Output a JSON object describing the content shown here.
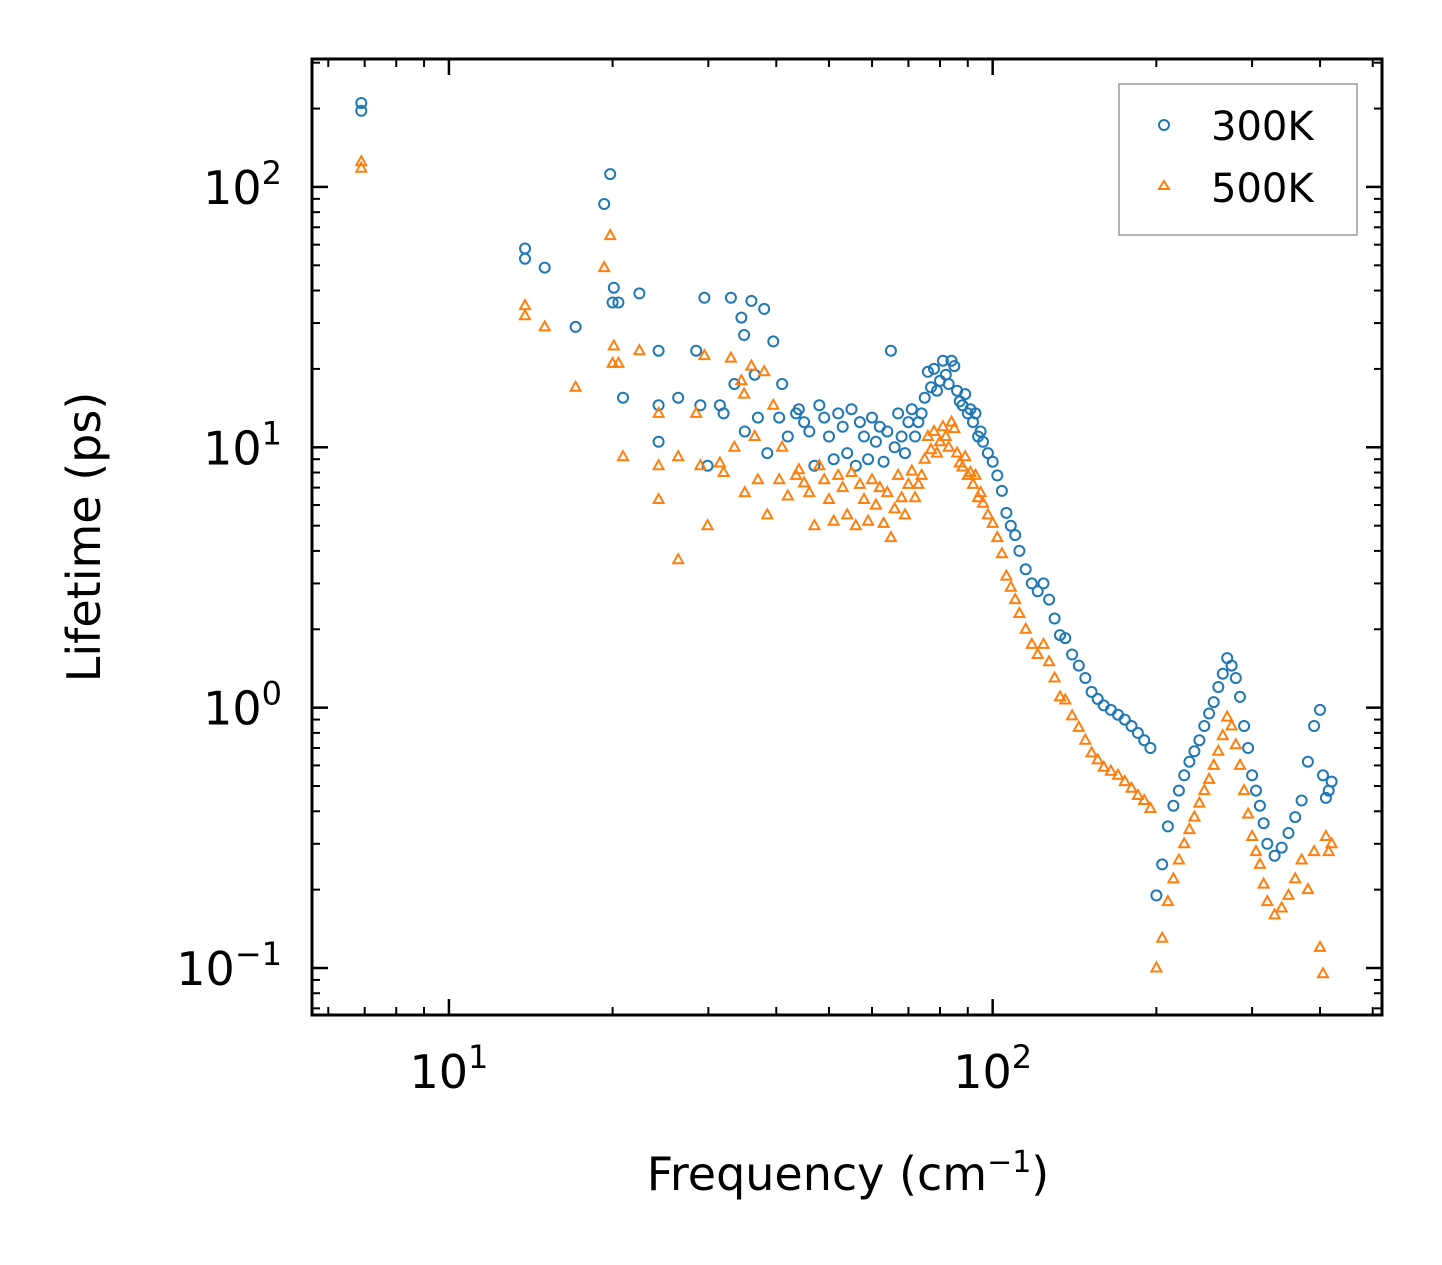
{
  "chart_data": {
    "type": "scatter",
    "title": "",
    "xlabel": "Frequency (cm",
    "xlabel_sup": "−1",
    "xlabel_suffix": ")",
    "ylabel": "Lifetime (ps)",
    "xscale": "log",
    "yscale": "log",
    "xlim": [
      5.6,
      520
    ],
    "ylim": [
      0.066,
      310
    ],
    "x_ticks": [
      {
        "value": 10,
        "base": "10",
        "exp": "1"
      },
      {
        "value": 100,
        "base": "10",
        "exp": "2"
      }
    ],
    "y_ticks": [
      {
        "value": 0.1,
        "base": "10",
        "exp": "−1"
      },
      {
        "value": 1,
        "base": "10",
        "exp": "0"
      },
      {
        "value": 10,
        "base": "10",
        "exp": "1"
      },
      {
        "value": 100,
        "base": "10",
        "exp": "2"
      }
    ],
    "legend_position": "top-right",
    "series": [
      {
        "name": "300K",
        "color": "#1f77b4",
        "marker": "circle",
        "x": [
          6.9,
          6.9,
          13.8,
          13.8,
          15.0,
          17.1,
          19.3,
          19.8,
          20.1,
          20.0,
          20.5,
          20.9,
          22.4,
          24.3,
          24.3,
          24.3,
          26.4,
          28.5,
          29.0,
          29.5,
          29.9,
          31.5,
          32.0,
          33.0,
          33.5,
          34.5,
          34.9,
          35.0,
          36.0,
          36.5,
          37.0,
          38.0,
          38.5,
          39.5,
          40.5,
          41.0,
          42.0,
          43.5,
          44.0,
          45.0,
          46.0,
          47.0,
          48.0,
          49.0,
          50.0,
          51.0,
          52.0,
          53.0,
          54.0,
          55.0,
          56.0,
          57.0,
          58.0,
          59.0,
          60.0,
          61.0,
          62.0,
          63.0,
          64.0,
          65.0,
          66.0,
          67.0,
          68.0,
          69.0,
          70.0,
          71.0,
          72.0,
          73.0,
          74.0,
          75.0,
          76.0,
          77.0,
          78.0,
          79.0,
          80.0,
          81.0,
          82.0,
          83.0,
          84.0,
          85.0,
          86.0,
          87.0,
          88.0,
          89.0,
          90.0,
          91.0,
          92.0,
          93.0,
          94.0,
          95.0,
          96.0,
          98.0,
          100.0,
          102.0,
          104.0,
          106.0,
          108.0,
          110.0,
          112.0,
          115.0,
          118.0,
          121.0,
          124.0,
          127.0,
          130.0,
          133.0,
          136.0,
          140.0,
          144.0,
          148.0,
          152.0,
          156.0,
          160.0,
          165.0,
          170.0,
          175.0,
          180.0,
          185.0,
          190.0,
          195.0,
          200.0,
          205.0,
          210.0,
          215.0,
          220.0,
          225.0,
          230.0,
          235.0,
          240.0,
          245.0,
          250.0,
          255.0,
          260.0,
          265.0,
          270.0,
          275.0,
          280.0,
          285.0,
          290.0,
          295.0,
          300.0,
          305.0,
          310.0,
          315.0,
          320.0,
          330.0,
          340.0,
          350.0,
          360.0,
          370.0,
          380.0,
          390.0,
          400.0,
          405.0,
          410.0,
          415.0,
          420.0
        ],
        "y": [
          210,
          196,
          58,
          53,
          49,
          29,
          86,
          112,
          41,
          36,
          36,
          15.5,
          39,
          23.5,
          14.5,
          10.5,
          15.5,
          23.5,
          14.5,
          37.5,
          8.5,
          14.5,
          13.5,
          37.5,
          17.5,
          31.5,
          27.0,
          11.5,
          36.5,
          19.0,
          13.0,
          34.0,
          9.5,
          25.5,
          13.0,
          17.5,
          11.0,
          13.5,
          14.0,
          12.5,
          11.5,
          8.5,
          14.5,
          13.0,
          11.0,
          9.0,
          13.5,
          12.0,
          9.5,
          14.0,
          8.5,
          12.5,
          11.0,
          9.0,
          13.0,
          10.5,
          12.0,
          8.8,
          11.5,
          23.5,
          10.0,
          13.5,
          11.0,
          9.5,
          12.5,
          14.0,
          11.0,
          12.5,
          13.5,
          15.5,
          19.5,
          17.0,
          20.0,
          16.5,
          18.0,
          21.5,
          19.0,
          17.5,
          21.5,
          20.5,
          16.5,
          15.0,
          14.5,
          16.0,
          13.5,
          14.0,
          12.5,
          13.5,
          11.0,
          11.5,
          10.5,
          9.5,
          8.8,
          7.8,
          6.8,
          5.6,
          5.0,
          4.6,
          4.0,
          3.4,
          3.0,
          2.8,
          3.0,
          2.6,
          2.2,
          1.9,
          1.85,
          1.6,
          1.45,
          1.3,
          1.15,
          1.08,
          1.02,
          0.98,
          0.94,
          0.9,
          0.85,
          0.8,
          0.75,
          0.7,
          0.19,
          0.25,
          0.35,
          0.42,
          0.48,
          0.55,
          0.62,
          0.68,
          0.75,
          0.85,
          0.95,
          1.05,
          1.2,
          1.35,
          1.55,
          1.45,
          1.3,
          1.1,
          0.85,
          0.7,
          0.55,
          0.48,
          0.42,
          0.36,
          0.3,
          0.27,
          0.29,
          0.33,
          0.38,
          0.44,
          0.62,
          0.85,
          0.98,
          0.55,
          0.45,
          0.48,
          0.52
        ]
      },
      {
        "name": "500K",
        "color": "#ff7f0e",
        "marker": "triangle",
        "x": [
          6.9,
          6.9,
          13.8,
          13.8,
          15.0,
          17.1,
          19.3,
          19.8,
          20.1,
          20.0,
          20.5,
          20.9,
          22.4,
          24.3,
          24.3,
          24.3,
          26.4,
          26.4,
          28.5,
          29.0,
          29.5,
          29.9,
          31.5,
          32.0,
          33.0,
          33.5,
          34.5,
          34.9,
          35.0,
          36.0,
          36.5,
          37.0,
          38.0,
          38.5,
          39.5,
          40.5,
          41.0,
          42.0,
          43.5,
          44.0,
          45.0,
          46.0,
          47.0,
          48.0,
          49.0,
          50.0,
          51.0,
          52.0,
          53.0,
          54.0,
          55.0,
          56.0,
          57.0,
          58.0,
          59.0,
          60.0,
          61.0,
          62.0,
          63.0,
          64.0,
          65.0,
          66.0,
          67.0,
          68.0,
          69.0,
          70.0,
          71.0,
          72.0,
          73.0,
          74.0,
          75.0,
          76.0,
          77.0,
          78.0,
          79.0,
          80.0,
          81.0,
          82.0,
          83.0,
          84.0,
          85.0,
          86.0,
          87.0,
          88.0,
          89.0,
          90.0,
          91.0,
          92.0,
          93.0,
          94.0,
          95.0,
          96.0,
          98.0,
          100.0,
          102.0,
          104.0,
          106.0,
          108.0,
          110.0,
          112.0,
          115.0,
          118.0,
          121.0,
          124.0,
          127.0,
          130.0,
          133.0,
          136.0,
          140.0,
          144.0,
          148.0,
          152.0,
          156.0,
          160.0,
          165.0,
          170.0,
          175.0,
          180.0,
          185.0,
          190.0,
          195.0,
          200.0,
          205.0,
          210.0,
          215.0,
          220.0,
          225.0,
          230.0,
          235.0,
          240.0,
          245.0,
          250.0,
          255.0,
          260.0,
          265.0,
          270.0,
          275.0,
          280.0,
          285.0,
          290.0,
          295.0,
          300.0,
          305.0,
          310.0,
          315.0,
          320.0,
          330.0,
          340.0,
          350.0,
          360.0,
          370.0,
          380.0,
          390.0,
          400.0,
          405.0,
          410.0,
          415.0,
          420.0
        ],
        "y": [
          125,
          118,
          35,
          32,
          29,
          17,
          49,
          65,
          24.5,
          21,
          21,
          9.2,
          23.5,
          13.5,
          8.5,
          6.3,
          9.2,
          3.7,
          13.5,
          8.5,
          22.5,
          5.0,
          8.7,
          8.0,
          22.0,
          10.0,
          18.0,
          16.0,
          6.7,
          20.5,
          11.0,
          7.5,
          19.5,
          5.5,
          14.5,
          7.5,
          10.0,
          6.5,
          7.8,
          8.2,
          7.3,
          6.7,
          5.0,
          8.5,
          7.5,
          6.3,
          5.2,
          7.8,
          7.0,
          5.5,
          8.0,
          5.0,
          7.2,
          6.3,
          5.2,
          7.5,
          6.0,
          7.0,
          5.1,
          6.7,
          4.5,
          5.8,
          7.8,
          6.4,
          5.5,
          7.2,
          8.1,
          6.4,
          7.2,
          7.8,
          9.0,
          11.0,
          9.8,
          11.5,
          9.5,
          10.5,
          12.0,
          11.0,
          10.0,
          12.5,
          11.8,
          9.5,
          8.7,
          8.4,
          9.2,
          7.8,
          8.0,
          7.2,
          7.8,
          6.4,
          6.7,
          6.1,
          5.5,
          5.1,
          4.5,
          3.9,
          3.2,
          2.9,
          2.6,
          2.3,
          2.0,
          1.75,
          1.6,
          1.75,
          1.5,
          1.3,
          1.1,
          1.07,
          0.93,
          0.84,
          0.75,
          0.67,
          0.63,
          0.59,
          0.57,
          0.55,
          0.52,
          0.49,
          0.46,
          0.44,
          0.41,
          0.1,
          0.13,
          0.18,
          0.22,
          0.26,
          0.3,
          0.34,
          0.38,
          0.43,
          0.48,
          0.53,
          0.6,
          0.68,
          0.78,
          0.92,
          0.85,
          0.72,
          0.6,
          0.48,
          0.39,
          0.32,
          0.28,
          0.25,
          0.21,
          0.18,
          0.16,
          0.17,
          0.19,
          0.22,
          0.26,
          0.2,
          0.28,
          0.12,
          0.095,
          0.32,
          0.28,
          0.3
        ]
      }
    ]
  }
}
